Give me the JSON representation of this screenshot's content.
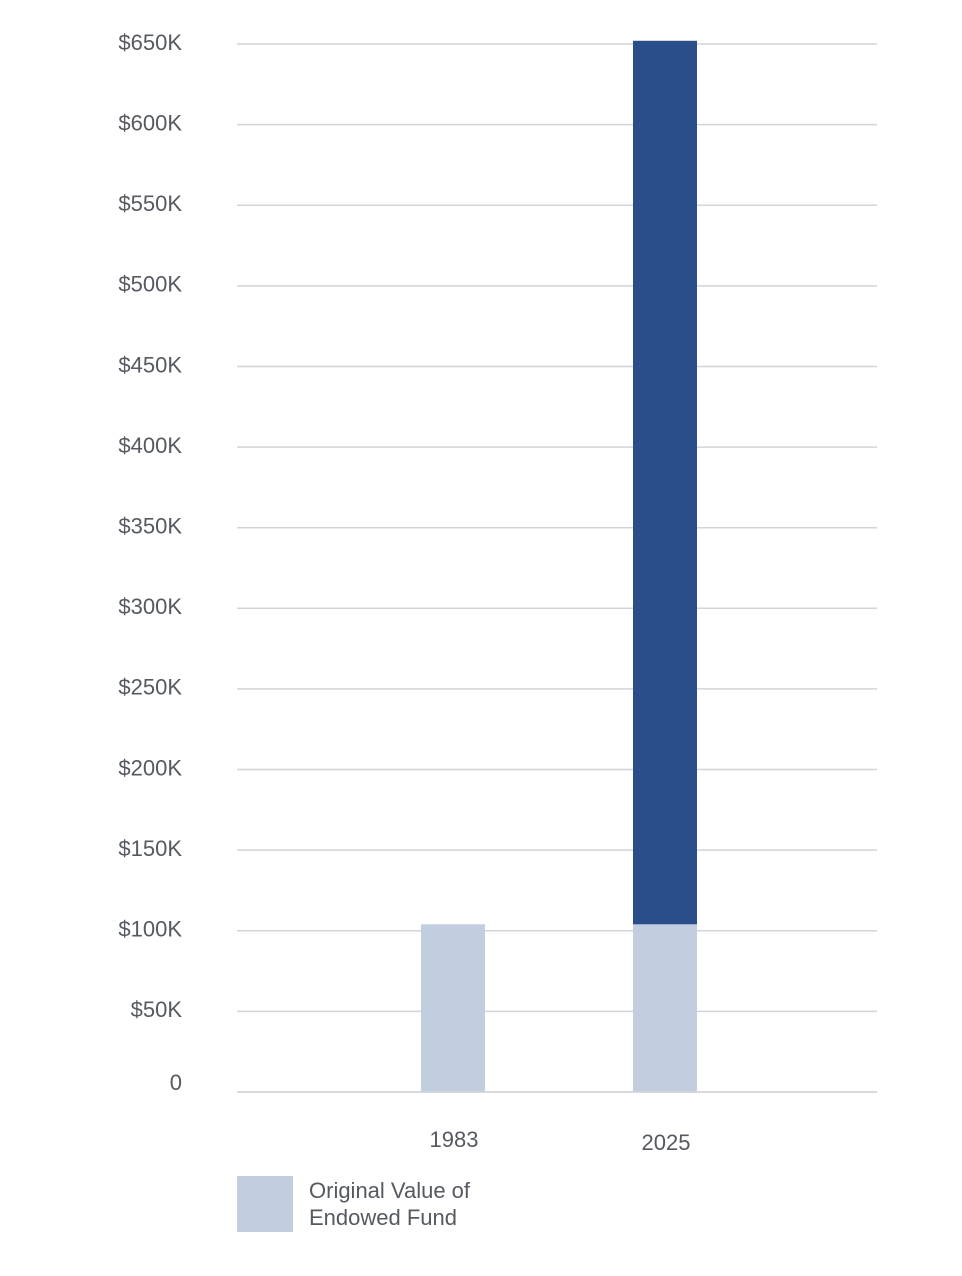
{
  "chart_data": {
    "type": "bar",
    "stacked": true,
    "categories": [
      "1983",
      "2025"
    ],
    "series": [
      {
        "name": "Original  Value of Endowed Fund",
        "values": [
          104000,
          104000
        ],
        "color": "#c2cde0"
      },
      {
        "values": [
          0,
          548000
        ],
        "color": "#2a4e8a"
      }
    ],
    "y_ticks": [
      0,
      50000,
      100000,
      150000,
      200000,
      250000,
      300000,
      350000,
      400000,
      450000,
      500000,
      550000,
      600000,
      650000
    ],
    "y_tick_labels": [
      "0",
      "$50K",
      "$100K",
      "$150K",
      "$200K",
      "$250K",
      "$300K",
      "$350K",
      "$400K",
      "$450K",
      "$500K",
      "$550K",
      "$600K",
      "$650K"
    ],
    "ylim": [
      0,
      650000
    ],
    "grid": true,
    "legend": {
      "placement": "bottom-left",
      "label": "Original  Value of\nEndowed Fund",
      "color": "#c2cde0"
    }
  }
}
